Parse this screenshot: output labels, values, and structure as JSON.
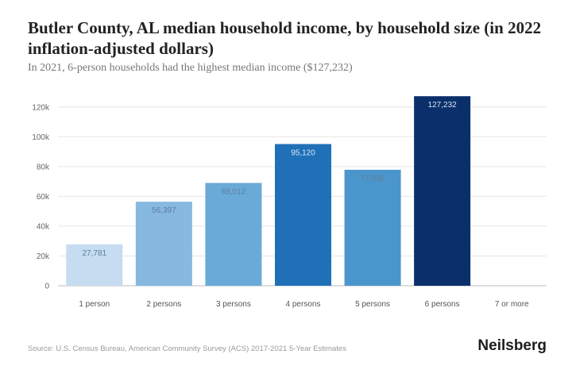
{
  "header": {
    "title": "Butler County, AL median household income, by household size (in 2022 inflation-adjusted dollars)",
    "subtitle": "In 2021, 6-person households had the highest median income ($127,232)"
  },
  "footer": {
    "source": "Source: U.S. Census Bureau, American Community Survey (ACS) 2017-2021 5-Year Estimates",
    "brand": "Neilsberg"
  },
  "chart_data": {
    "type": "bar",
    "title": "Butler County, AL median household income, by household size (in 2022 inflation-adjusted dollars)",
    "subtitle": "In 2021, 6-person households had the highest median income ($127,232)",
    "xlabel": "",
    "ylabel": "",
    "categories": [
      "1 person",
      "2 persons",
      "3 persons",
      "4 persons",
      "5 persons",
      "6 persons",
      "7 or more"
    ],
    "values": [
      27781,
      56397,
      69012,
      95120,
      77836,
      127232,
      null
    ],
    "data_labels": [
      "27,781",
      "56,397",
      "69,012",
      "95,120",
      "77,836",
      "127,232",
      ""
    ],
    "ylim": [
      0,
      130000
    ],
    "yticks": [
      0,
      20000,
      40000,
      60000,
      80000,
      100000,
      120000
    ],
    "ytick_labels": [
      "0",
      "20k",
      "40k",
      "60k",
      "80k",
      "100k",
      "120k"
    ],
    "grid": true,
    "legend": "none",
    "bar_colors": [
      "#c6dcf0",
      "#86b8e0",
      "#6aaad8",
      "#2070b8",
      "#4a96cc",
      "#0b2f6a",
      "#cccccc"
    ]
  }
}
